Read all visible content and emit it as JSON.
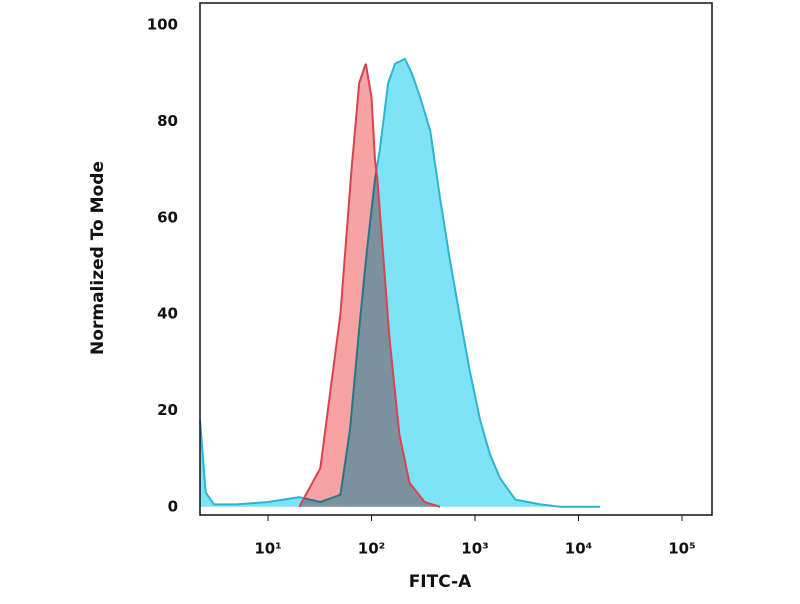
{
  "chart_data": {
    "type": "area",
    "xlabel": "FITC-A",
    "ylabel": "Normalized To Mode",
    "xscale": "log",
    "xlim": [
      2.2,
      195000
    ],
    "ylim": [
      -1.7,
      104.6
    ],
    "xticks": [
      {
        "value": 10,
        "label": "10¹"
      },
      {
        "value": 100,
        "label": "10²"
      },
      {
        "value": 1000,
        "label": "10³"
      },
      {
        "value": 10000,
        "label": "10⁴"
      },
      {
        "value": 100000,
        "label": "10⁵"
      }
    ],
    "yticks": [
      0,
      20,
      40,
      60,
      80,
      100
    ],
    "grid": false,
    "series": [
      {
        "color": "#2bb5d1",
        "fill": "#7fe3f7",
        "x": [
          2.2,
          2.5,
          3,
          5,
          10,
          20,
          32,
          50,
          62,
          76,
          90,
          108,
          120,
          145,
          169,
          210,
          245,
          295,
          370,
          460,
          575,
          720,
          895,
          1120,
          1390,
          1740,
          2450,
          4270,
          6650,
          16200
        ],
        "values": [
          18,
          3,
          0.5,
          0.5,
          1,
          2,
          1,
          2.5,
          16,
          37,
          53,
          68,
          74,
          88,
          92,
          93,
          90,
          85,
          78,
          64,
          51,
          39,
          28,
          18,
          11,
          6,
          1.5,
          0.5,
          0,
          0
        ]
      },
      {
        "color": "#d9434f",
        "fill": "#f7a3a3",
        "x": [
          20,
          32,
          50,
          64,
          76,
          88,
          100,
          108,
          114,
          149,
          186,
          233,
          326,
          460
        ],
        "values": [
          0,
          8,
          40,
          70,
          88,
          92,
          85,
          72,
          68,
          35,
          15,
          5,
          1,
          0
        ]
      }
    ]
  }
}
